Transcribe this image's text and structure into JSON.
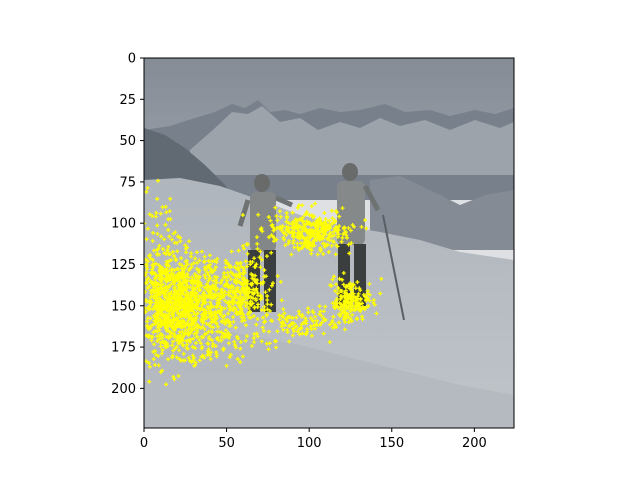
{
  "colors": {
    "axes_frame": "#000000",
    "marker": "#ffff00",
    "sky_top": "#8a9098",
    "snow": "#d6dade",
    "mountain": "#7c8490"
  },
  "x_axis": {
    "range": [
      0,
      224
    ],
    "ticks": [
      {
        "value": 0,
        "label": "0"
      },
      {
        "value": 50,
        "label": "50"
      },
      {
        "value": 100,
        "label": "100"
      },
      {
        "value": 150,
        "label": "150"
      },
      {
        "value": 200,
        "label": "200"
      }
    ]
  },
  "y_axis": {
    "range": [
      0,
      224
    ],
    "inverted": true,
    "ticks": [
      {
        "value": 0,
        "label": "0"
      },
      {
        "value": 25,
        "label": "25"
      },
      {
        "value": 50,
        "label": "50"
      },
      {
        "value": 75,
        "label": "75"
      },
      {
        "value": 100,
        "label": "100"
      },
      {
        "value": 125,
        "label": "125"
      },
      {
        "value": 150,
        "label": "150"
      },
      {
        "value": 175,
        "label": "175"
      },
      {
        "value": 200,
        "label": "200"
      }
    ]
  },
  "image_subject": "two-skiers-on-snowy-mountain",
  "overlay": {
    "marker_shape": "plus",
    "clusters": [
      {
        "cx": 25,
        "cy": 148,
        "rx": 30,
        "ry": 25,
        "count": 900
      },
      {
        "cx": 12,
        "cy": 140,
        "rx": 14,
        "ry": 38,
        "count": 300
      },
      {
        "cx": 60,
        "cy": 140,
        "rx": 14,
        "ry": 20,
        "count": 250
      },
      {
        "cx": 100,
        "cy": 105,
        "rx": 22,
        "ry": 12,
        "count": 320
      },
      {
        "cx": 125,
        "cy": 148,
        "rx": 12,
        "ry": 12,
        "count": 180
      },
      {
        "cx": 95,
        "cy": 160,
        "rx": 20,
        "ry": 8,
        "count": 100
      },
      {
        "cx": 40,
        "cy": 175,
        "rx": 35,
        "ry": 10,
        "count": 60
      },
      {
        "cx": 20,
        "cy": 185,
        "rx": 20,
        "ry": 10,
        "count": 20
      }
    ]
  }
}
